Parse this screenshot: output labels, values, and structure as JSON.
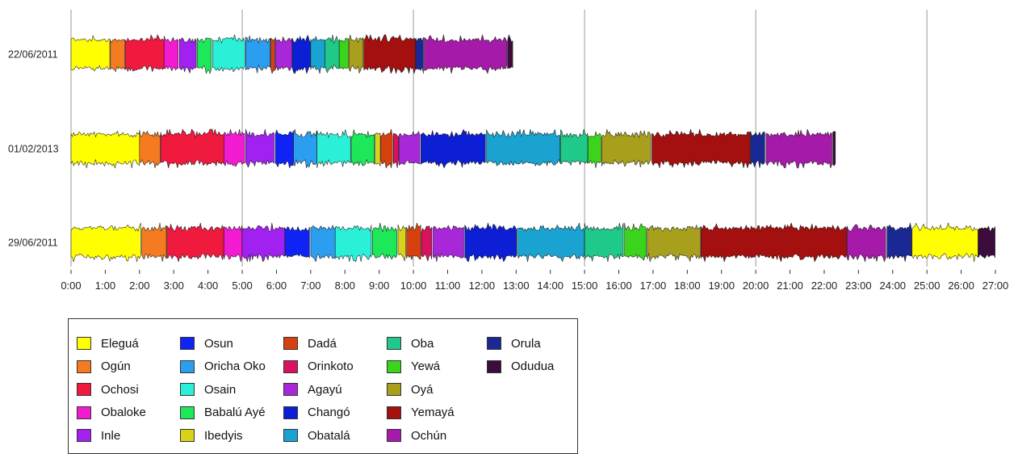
{
  "chart_data": {
    "type": "bar",
    "x_axis": {
      "min_minutes": 0,
      "max_minutes": 1620,
      "ticks": [
        "0:00",
        "1:00",
        "2:00",
        "3:00",
        "4:00",
        "5:00",
        "6:00",
        "7:00",
        "8:00",
        "9:00",
        "10:00",
        "11:00",
        "12:00",
        "13:00",
        "14:00",
        "15:00",
        "16:00",
        "17:00",
        "18:00",
        "19:00",
        "20:00",
        "21:00",
        "22:00",
        "23:00",
        "24:00",
        "25:00",
        "26:00",
        "27:00"
      ],
      "gridlines_at_minutes": [
        0,
        300,
        600,
        900,
        1200,
        1500
      ]
    },
    "legend": [
      {
        "name": "Eleguá",
        "color": "#ffff00"
      },
      {
        "name": "Ogún",
        "color": "#f47b20"
      },
      {
        "name": "Ochosi",
        "color": "#f0193e"
      },
      {
        "name": "Obaloke",
        "color": "#f21bd2"
      },
      {
        "name": "Inle",
        "color": "#a021f0"
      },
      {
        "name": "Osun",
        "color": "#1023f5"
      },
      {
        "name": "Oricha Oko",
        "color": "#2c9ef0"
      },
      {
        "name": "Osain",
        "color": "#2af0d8"
      },
      {
        "name": "Babalú Ayé",
        "color": "#1ce85a"
      },
      {
        "name": "Ibedyis",
        "color": "#d8d21a"
      },
      {
        "name": "Dadá",
        "color": "#d6410e"
      },
      {
        "name": "Orinkoto",
        "color": "#d8125e"
      },
      {
        "name": "Agayú",
        "color": "#a827d8"
      },
      {
        "name": "Changó",
        "color": "#0d1fd4"
      },
      {
        "name": "Obatalá",
        "color": "#1aa3d0"
      },
      {
        "name": "Oba",
        "color": "#1fc98a"
      },
      {
        "name": "Yewá",
        "color": "#3bd41c"
      },
      {
        "name": "Oyá",
        "color": "#a8a01c"
      },
      {
        "name": "Yemayá",
        "color": "#a3100f"
      },
      {
        "name": "Ochún",
        "color": "#a51aa8"
      },
      {
        "name": "Orula",
        "color": "#1a2894"
      },
      {
        "name": "Odudua",
        "color": "#3c0c3c"
      }
    ],
    "recordings": [
      {
        "label": "22/06/2011",
        "segments": [
          {
            "orisha": "Eleguá",
            "start": 0,
            "end": 69
          },
          {
            "orisha": "Ogún",
            "start": 69,
            "end": 95
          },
          {
            "orisha": "Ochosi",
            "start": 95,
            "end": 163
          },
          {
            "orisha": "Obaloke",
            "start": 163,
            "end": 190
          },
          {
            "orisha": "Inle",
            "start": 190,
            "end": 221
          },
          {
            "orisha": "Babalú Ayé",
            "start": 221,
            "end": 248
          },
          {
            "orisha": "Osain",
            "start": 248,
            "end": 306
          },
          {
            "orisha": "Oricha Oko",
            "start": 306,
            "end": 350
          },
          {
            "orisha": "Dadá",
            "start": 350,
            "end": 358
          },
          {
            "orisha": "Agayú",
            "start": 358,
            "end": 388
          },
          {
            "orisha": "Changó",
            "start": 388,
            "end": 420
          },
          {
            "orisha": "Obatalá",
            "start": 420,
            "end": 445
          },
          {
            "orisha": "Oba",
            "start": 445,
            "end": 470
          },
          {
            "orisha": "Yewá",
            "start": 470,
            "end": 487
          },
          {
            "orisha": "Oyá",
            "start": 487,
            "end": 513
          },
          {
            "orisha": "Yemayá",
            "start": 513,
            "end": 604
          },
          {
            "orisha": "Orula",
            "start": 604,
            "end": 619
          },
          {
            "orisha": "Ochún",
            "start": 619,
            "end": 765
          },
          {
            "orisha": "Odudua",
            "start": 765,
            "end": 775
          }
        ]
      },
      {
        "label": "01/02/2013",
        "segments": [
          {
            "orisha": "Eleguá",
            "start": 0,
            "end": 120
          },
          {
            "orisha": "Ogún",
            "start": 120,
            "end": 157
          },
          {
            "orisha": "Ochosi",
            "start": 157,
            "end": 268
          },
          {
            "orisha": "Obaloke",
            "start": 268,
            "end": 306
          },
          {
            "orisha": "Inle",
            "start": 306,
            "end": 358
          },
          {
            "orisha": "Osun",
            "start": 358,
            "end": 390
          },
          {
            "orisha": "Oricha Oko",
            "start": 390,
            "end": 431
          },
          {
            "orisha": "Osain",
            "start": 431,
            "end": 491
          },
          {
            "orisha": "Babalú Ayé",
            "start": 491,
            "end": 533
          },
          {
            "orisha": "Ibedyis",
            "start": 533,
            "end": 543
          },
          {
            "orisha": "Dadá",
            "start": 543,
            "end": 565
          },
          {
            "orisha": "Orinkoto",
            "start": 565,
            "end": 575
          },
          {
            "orisha": "Agayú",
            "start": 575,
            "end": 613
          },
          {
            "orisha": "Changó",
            "start": 613,
            "end": 728
          },
          {
            "orisha": "Obatalá",
            "start": 728,
            "end": 858
          },
          {
            "orisha": "Oba",
            "start": 858,
            "end": 906
          },
          {
            "orisha": "Yewá",
            "start": 906,
            "end": 930
          },
          {
            "orisha": "Oyá",
            "start": 930,
            "end": 1018
          },
          {
            "orisha": "Yemayá",
            "start": 1018,
            "end": 1191
          },
          {
            "orisha": "Orula",
            "start": 1191,
            "end": 1218
          },
          {
            "orisha": "Ochún",
            "start": 1218,
            "end": 1335
          },
          {
            "orisha": "Odudua",
            "start": 1335,
            "end": 1340
          }
        ]
      },
      {
        "label": "29/06/2011",
        "segments": [
          {
            "orisha": "Eleguá",
            "start": 0,
            "end": 124
          },
          {
            "orisha": "Ogún",
            "start": 124,
            "end": 168
          },
          {
            "orisha": "Ochosi",
            "start": 168,
            "end": 268
          },
          {
            "orisha": "Obaloke",
            "start": 268,
            "end": 300
          },
          {
            "orisha": "Inle",
            "start": 300,
            "end": 375
          },
          {
            "orisha": "Osun",
            "start": 375,
            "end": 420
          },
          {
            "orisha": "Oricha Oko",
            "start": 420,
            "end": 463
          },
          {
            "orisha": "Osain",
            "start": 463,
            "end": 528
          },
          {
            "orisha": "Babalú Ayé",
            "start": 528,
            "end": 573
          },
          {
            "orisha": "Ibedyis",
            "start": 573,
            "end": 588
          },
          {
            "orisha": "Dadá",
            "start": 588,
            "end": 614
          },
          {
            "orisha": "Orinkoto",
            "start": 614,
            "end": 634
          },
          {
            "orisha": "Agayú",
            "start": 634,
            "end": 690
          },
          {
            "orisha": "Changó",
            "start": 690,
            "end": 782
          },
          {
            "orisha": "Obatalá",
            "start": 782,
            "end": 900
          },
          {
            "orisha": "Oba",
            "start": 900,
            "end": 970
          },
          {
            "orisha": "Yewá",
            "start": 970,
            "end": 1010
          },
          {
            "orisha": "Oyá",
            "start": 1010,
            "end": 1104
          },
          {
            "orisha": "Yemayá",
            "start": 1104,
            "end": 1360
          },
          {
            "orisha": "Ochún",
            "start": 1360,
            "end": 1430
          },
          {
            "orisha": "Orula",
            "start": 1430,
            "end": 1474
          },
          {
            "orisha": "Eleguá",
            "start": 1474,
            "end": 1590
          },
          {
            "orisha": "Odudua",
            "start": 1590,
            "end": 1620
          }
        ]
      }
    ]
  }
}
